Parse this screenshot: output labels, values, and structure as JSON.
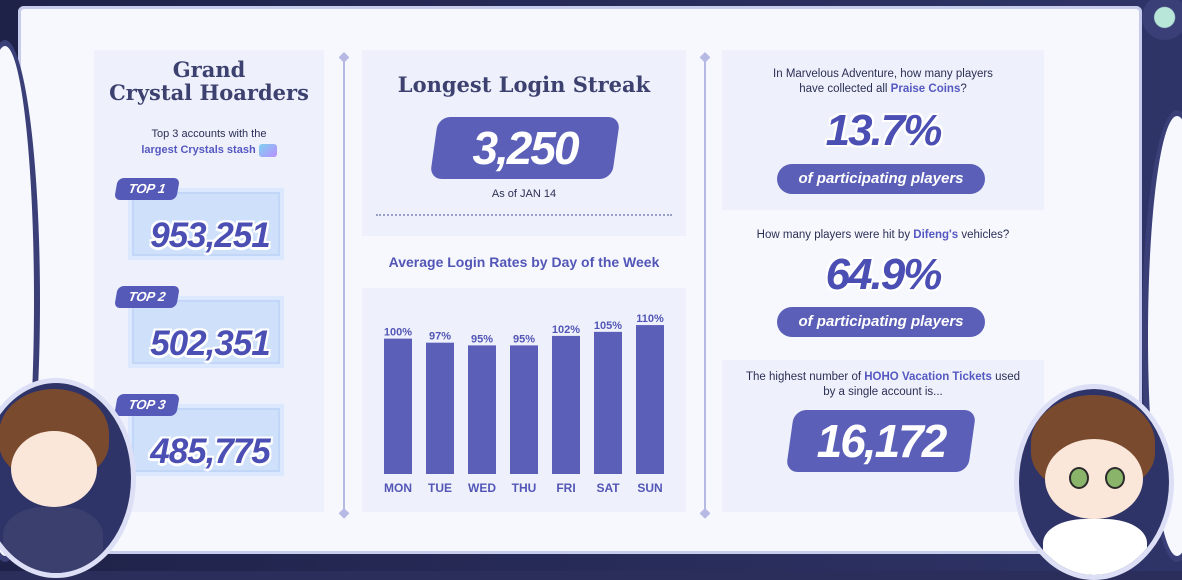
{
  "left_panel": {
    "title_line1": "Grand",
    "title_line2": "Crystal Hoarders",
    "subtitle_line1": "Top 3 accounts with the",
    "subtitle_highlight": "largest Crystals stash",
    "items": [
      {
        "rank": "TOP 1",
        "value": "953,251"
      },
      {
        "rank": "TOP 2",
        "value": "502,351"
      },
      {
        "rank": "TOP 3",
        "value": "485,775"
      }
    ]
  },
  "streak": {
    "title": "Longest Login Streak",
    "value": "3,250",
    "as_of": "As of JAN 14"
  },
  "chart_data": {
    "type": "bar",
    "title": "Average Login Rates by Day of the Week",
    "categories": [
      "MON",
      "TUE",
      "WED",
      "THU",
      "FRI",
      "SAT",
      "SUN"
    ],
    "values": [
      100,
      97,
      95,
      95,
      102,
      105,
      110
    ],
    "value_labels": [
      "100%",
      "97%",
      "95%",
      "95%",
      "102%",
      "105%",
      "110%"
    ],
    "unit": "%",
    "xlabel": "",
    "ylabel": "",
    "ylim": [
      0,
      130
    ],
    "grid": false,
    "bar_color": "#5b5fb8"
  },
  "right_panel": {
    "q1_line1": "In Marvelous Adventure, how many players",
    "q1_line2_pre": "have collected all ",
    "q1_highlight": "Praise Coins",
    "q1_line2_post": "?",
    "q1_value": "13.7%",
    "q1_pill": "of participating players",
    "q2_pre": "How many players were hit by ",
    "q2_highlight": "Difeng's",
    "q2_post": " vehicles?",
    "q2_value": "64.9%",
    "q2_pill": "of participating players",
    "q3_pre": "The highest number of ",
    "q3_highlight": "HOHO Vacation Tickets",
    "q3_post": " used",
    "q3_line2": "by a single account is...",
    "q3_value": "16,172"
  },
  "colors": {
    "accent": "#5b5fb8",
    "text_dark": "#2c2f55",
    "panel_bg": "#eef1fb"
  }
}
